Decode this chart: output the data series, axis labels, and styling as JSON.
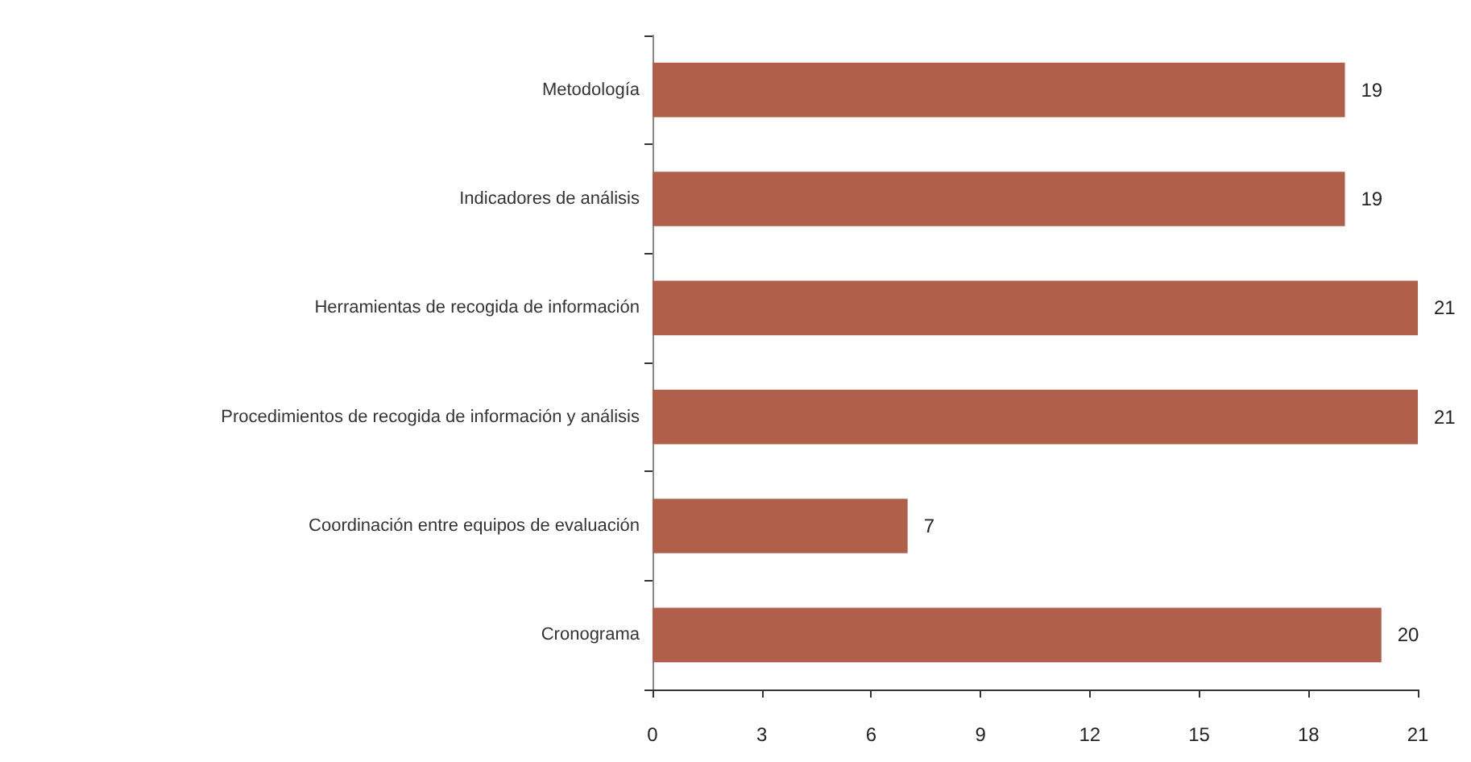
{
  "chart_data": {
    "type": "bar",
    "orientation": "horizontal",
    "categories": [
      "Metodología",
      "Indicadores de análisis",
      "Herramientas de recogida de información",
      "Procedimientos de recogida de información y análisis",
      "Coordinación entre equipos de evaluación",
      "Cronograma"
    ],
    "values": [
      19,
      19,
      21,
      21,
      7,
      20
    ],
    "color": "#b0604a",
    "xlim": [
      0,
      21
    ],
    "xticks": [
      0,
      3,
      6,
      9,
      12,
      15,
      18,
      21
    ],
    "data_labels": true
  }
}
